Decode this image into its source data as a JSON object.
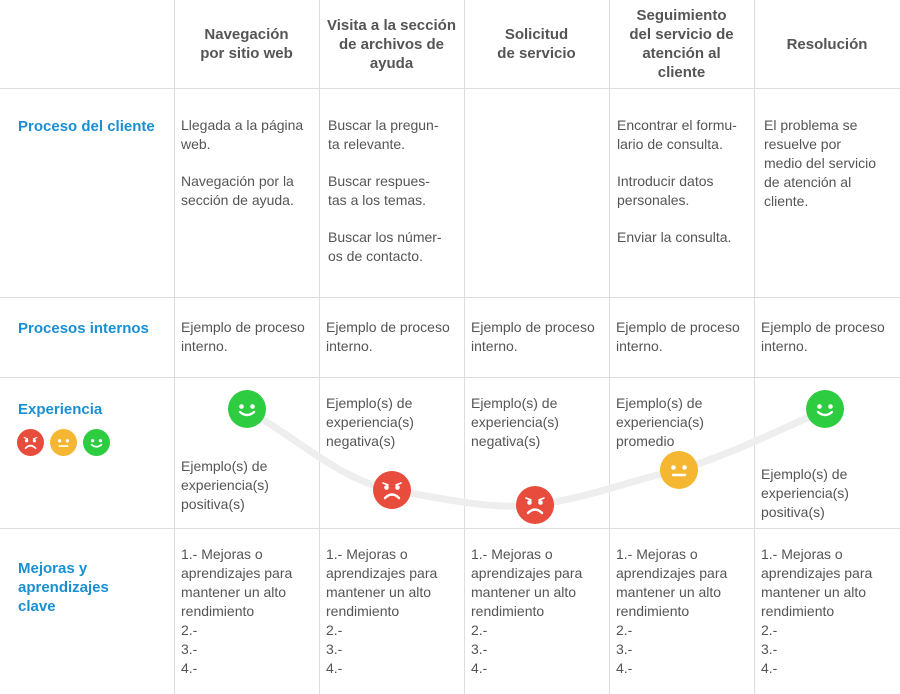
{
  "columns": [
    "Navegación\npor sitio web",
    "Visita a la sección\nde archivos de\nayuda",
    "Solicitud\nde servicio",
    "Seguimiento\ndel servicio de\natención al\ncliente",
    "Resolución"
  ],
  "rows": {
    "customer_process": {
      "label": "Proceso del cliente",
      "cells": [
        [
          "Llegada a la página\nweb.",
          "Navegación por la\nsección de ayuda."
        ],
        [
          "Buscar la pregun-\nta relevante.",
          "Buscar respues-\ntas a los temas.",
          "Buscar los númer-\nos de contacto."
        ],
        [],
        [
          "Encontrar el formu-\nlario de consulta.",
          "Introducir datos\npersonales.",
          "Enviar la consulta."
        ],
        [
          "El problema se\nresuelve por\nmedio del servicio\nde atención al\ncliente."
        ]
      ]
    },
    "internal_process": {
      "label": "Procesos internos",
      "cells": [
        "Ejemplo de proceso\ninterno.",
        "Ejemplo de proceso\ninterno.",
        "Ejemplo de proceso\ninterno.",
        "Ejemplo de proceso\ninterno.",
        "Ejemplo de proceso\ninterno."
      ]
    },
    "experience": {
      "label": "Experiencia",
      "legend_icons": [
        "sad-face-icon",
        "neutral-face-icon",
        "happy-face-icon"
      ],
      "cells": [
        "Ejemplo(s) de\nexperiencia(s)\npositiva(s)",
        "Ejemplo(s) de\nexperiencia(s)\nnegativa(s)",
        "Ejemplo(s) de\nexperiencia(s)\nnegativa(s)",
        "Ejemplo(s) de\nexperiencia(s)\npromedio",
        "Ejemplo(s) de\nexperiencia(s)\npositiva(s)"
      ],
      "moods": [
        "happy",
        "sad",
        "sad",
        "neutral",
        "happy"
      ]
    },
    "improvements": {
      "label": "Mejoras y\naprendizajes\nclave",
      "cells": [
        "1.- Mejoras o\naprendizajes para\nmantener un alto\nrendimiento\n2.-\n3.-\n4.-",
        "1.- Mejoras o\naprendizajes para\nmantener un alto\nrendimiento\n2.-\n3.-\n4.-",
        "1.- Mejoras o\naprendizajes para\nmantener un alto\nrendimiento\n2.-\n3.-\n4.-",
        "1.- Mejoras o\naprendizajes para\nmantener un alto\nrendimiento\n2.-\n3.-\n4.-",
        "1.- Mejoras o\naprendizajes para\nmantener un alto\nrendimiento\n2.-\n3.-\n4.-"
      ]
    }
  },
  "colors": {
    "accent": "#1a8fd1",
    "happy": "#2ecc40",
    "neutral": "#f5b731",
    "sad": "#e74c3c",
    "curve": "#eeeeee"
  }
}
